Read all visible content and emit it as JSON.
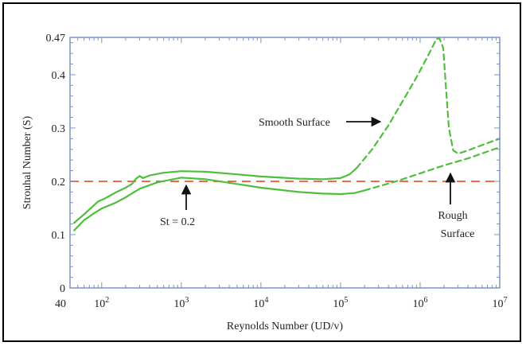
{
  "chart_data": {
    "type": "line",
    "xscale": "log",
    "xlim": [
      40,
      10000000
    ],
    "ylim": [
      0,
      0.47
    ],
    "xlabel": "Reynolds Number (UD/v)",
    "ylabel": "Strouhal Number (S)",
    "x_ticks": [
      {
        "value": 40,
        "label": "40"
      },
      {
        "value": 100,
        "label": "10",
        "sup": "2"
      },
      {
        "value": 1000,
        "label": "10",
        "sup": "3"
      },
      {
        "value": 10000,
        "label": "10",
        "sup": "4"
      },
      {
        "value": 100000,
        "label": "10",
        "sup": "5"
      },
      {
        "value": 1000000,
        "label": "10",
        "sup": "6"
      },
      {
        "value": 10000000,
        "label": "10",
        "sup": "7"
      }
    ],
    "y_ticks": [
      {
        "value": 0,
        "label": "0"
      },
      {
        "value": 0.1,
        "label": "0.1"
      },
      {
        "value": 0.2,
        "label": "0.2"
      },
      {
        "value": 0.3,
        "label": "0.3"
      },
      {
        "value": 0.4,
        "label": "0.4"
      },
      {
        "value": 0.47,
        "label": "0.47"
      }
    ],
    "reference_line": {
      "y": 0.2,
      "color": "#ee6a4e",
      "style": "dashed"
    },
    "series": [
      {
        "color": "#4fbe3c",
        "segments": [
          {
            "style": "solid",
            "points": [
              [
                45,
                0.122
              ],
              [
                60,
                0.138
              ],
              [
                80,
                0.155
              ],
              [
                90,
                0.162
              ],
              [
                110,
                0.168
              ],
              [
                150,
                0.179
              ],
              [
                200,
                0.188
              ],
              [
                240,
                0.195
              ],
              [
                270,
                0.205
              ],
              [
                300,
                0.21
              ],
              [
                330,
                0.206
              ],
              [
                400,
                0.211
              ],
              [
                600,
                0.216
              ],
              [
                1000,
                0.219
              ],
              [
                2000,
                0.218
              ],
              [
                5000,
                0.213
              ],
              [
                10000,
                0.209
              ],
              [
                30000,
                0.205
              ],
              [
                60000,
                0.204
              ],
              [
                100000,
                0.206
              ],
              [
                130000,
                0.213
              ],
              [
                160000,
                0.225
              ]
            ]
          },
          {
            "style": "dashed",
            "points": [
              [
                160000,
                0.225
              ],
              [
                250000,
                0.26
              ],
              [
                400000,
                0.305
              ],
              [
                600000,
                0.35
              ],
              [
                900000,
                0.395
              ],
              [
                1300000,
                0.44
              ],
              [
                1600000,
                0.467
              ],
              [
                1750000,
                0.468
              ],
              [
                1950000,
                0.45
              ],
              [
                2100000,
                0.38
              ],
              [
                2300000,
                0.3
              ],
              [
                2600000,
                0.258
              ],
              [
                3000000,
                0.252
              ],
              [
                4000000,
                0.258
              ],
              [
                6000000,
                0.268
              ],
              [
                10000000,
                0.28
              ]
            ]
          }
        ]
      },
      {
        "color": "#4fbe3c",
        "segments": [
          {
            "style": "solid",
            "points": [
              [
                45,
                0.108
              ],
              [
                60,
                0.127
              ],
              [
                80,
                0.14
              ],
              [
                100,
                0.149
              ],
              [
                150,
                0.16
              ],
              [
                200,
                0.17
              ],
              [
                300,
                0.186
              ],
              [
                500,
                0.198
              ],
              [
                1000,
                0.207
              ],
              [
                2000,
                0.204
              ],
              [
                5000,
                0.195
              ],
              [
                10000,
                0.188
              ],
              [
                30000,
                0.18
              ],
              [
                60000,
                0.177
              ],
              [
                100000,
                0.176
              ],
              [
                150000,
                0.178
              ],
              [
                200000,
                0.183
              ]
            ]
          },
          {
            "style": "dashed",
            "points": [
              [
                200000,
                0.183
              ],
              [
                500000,
                0.2
              ],
              [
                1000000,
                0.215
              ],
              [
                2000000,
                0.23
              ],
              [
                4000000,
                0.243
              ],
              [
                10000000,
                0.264
              ]
            ]
          }
        ]
      }
    ],
    "annotations": [
      {
        "text": "Smooth Surface",
        "arrow": "right"
      },
      {
        "text": "St = 0.2",
        "arrow": "up"
      },
      {
        "text": "Rough",
        "text2": "Surface",
        "arrow": "up"
      }
    ],
    "colors": {
      "axis": "#7b93c7",
      "series": "#4fbe3c",
      "reference": "#ee6a4e",
      "text": "#222222"
    }
  }
}
